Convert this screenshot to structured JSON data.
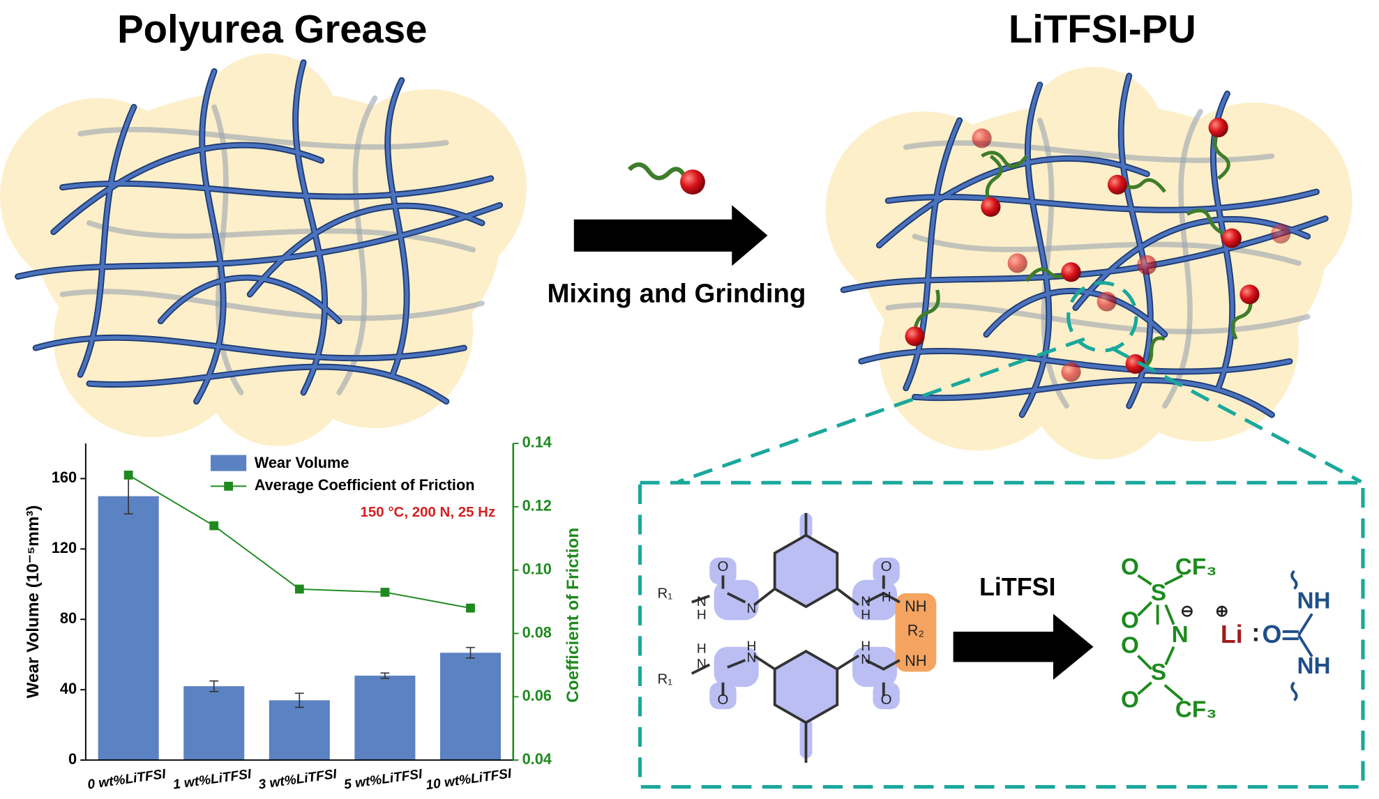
{
  "header": {
    "left_title": "Polyurea Grease",
    "right_title": "LiTFSI-PU",
    "process_label": "Mixing and Grinding"
  },
  "chart_data": {
    "type": "bar-line",
    "y_label": "Wear Volume (10⁻⁵mm³)",
    "y2_label": "Coefficient of Friction",
    "annotation": "150 °C, 200 N, 25 Hz",
    "categories": [
      "0 wt%LiTFSI",
      "1 wt%LiTFSI",
      "3 wt%LiTFSI",
      "5 wt%LiTFSI",
      "10 wt%LiTFSI"
    ],
    "series": [
      {
        "name": "Wear Volume",
        "type": "bar",
        "color": "#5b82c2",
        "values": [
          150,
          42,
          34,
          48,
          61
        ],
        "errors": [
          10,
          3,
          4,
          1.5,
          3
        ]
      },
      {
        "name": "Average Coefficient of Friction",
        "type": "line",
        "axis": "y2",
        "color": "#1e8a1e",
        "values": [
          0.13,
          0.114,
          0.094,
          0.093,
          0.088
        ]
      }
    ],
    "ylim": [
      0,
      180
    ],
    "yticks": [
      0,
      40,
      80,
      120,
      160
    ],
    "y2lim": [
      0.04,
      0.14
    ],
    "y2ticks": [
      0.04,
      0.06,
      0.08,
      {
        "value": 0.1,
        "label": "0.10"
      },
      0.12,
      0.14
    ]
  },
  "scheme": {
    "arrow_label": "LiTFSI",
    "labels": [
      "R₁",
      "H",
      "N",
      "O",
      "N",
      "H",
      "N",
      "H",
      "O",
      "NH",
      "R₂",
      "NH",
      "R₁",
      "N",
      "H",
      "O",
      "H",
      "N",
      "H",
      "N",
      "O",
      "O",
      "CF₃",
      "S",
      "O",
      "N",
      "O",
      "S",
      "O",
      "CF₃",
      "⊖",
      "⊕",
      "Li",
      ":",
      "O",
      "NH",
      "NH"
    ]
  }
}
